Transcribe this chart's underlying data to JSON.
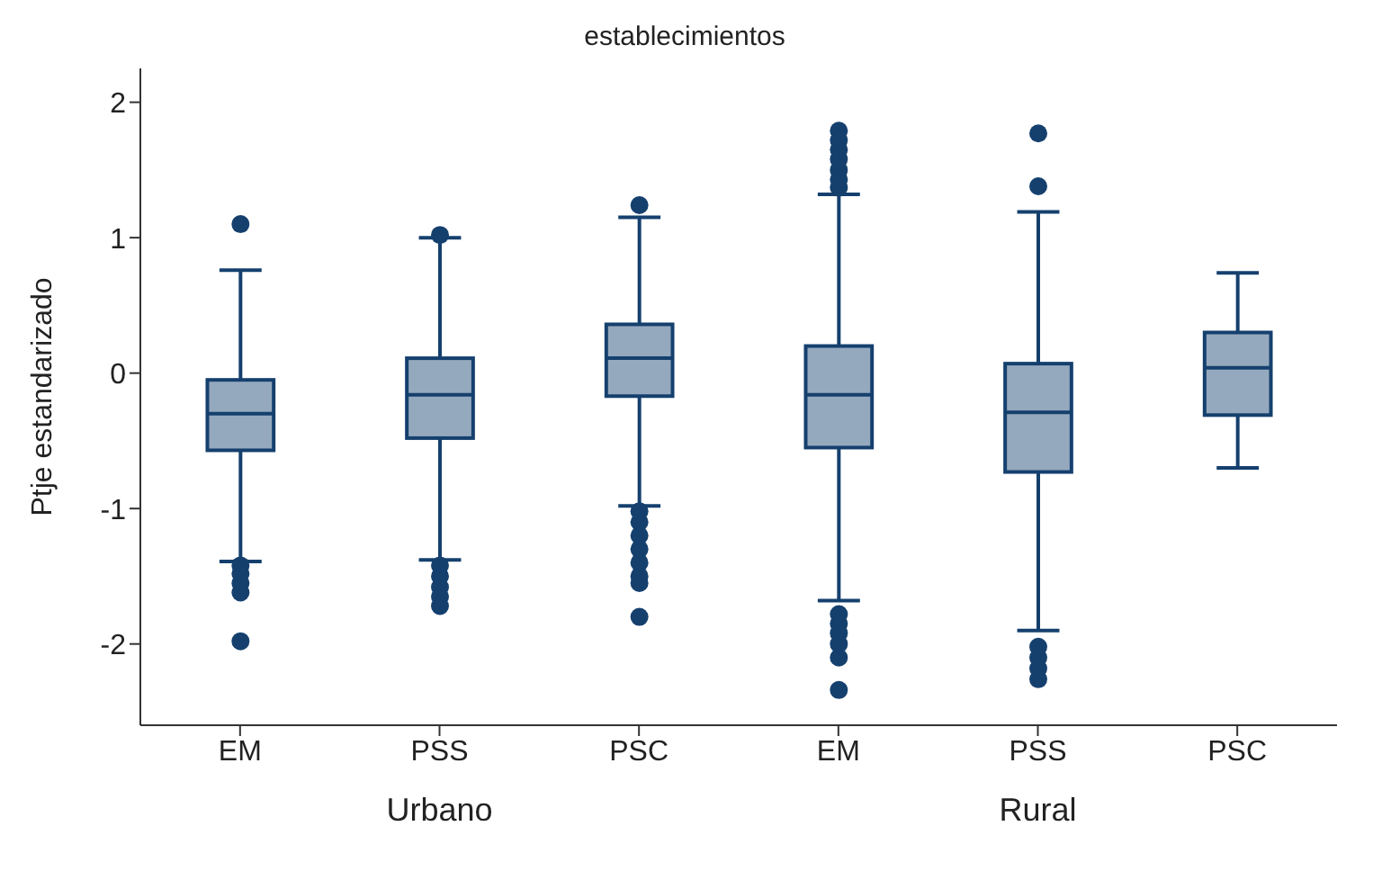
{
  "chart_data": {
    "type": "box",
    "title": "establecimientos",
    "ylabel": "Ptje estandarizado",
    "categories": [
      "EM",
      "PSS",
      "PSC",
      "EM",
      "PSS",
      "PSC"
    ],
    "color": "#15406e",
    "boxes": [
      {
        "low": -1.39,
        "q1": -0.57,
        "median": -0.3,
        "q3": -0.05,
        "high": 0.76,
        "outliers": [
          1.1,
          -1.42,
          -1.48,
          -1.55,
          -1.62,
          -1.98
        ]
      },
      {
        "low": -1.38,
        "q1": -0.48,
        "median": -0.16,
        "q3": 0.11,
        "high": 1.0,
        "outliers": [
          1.02,
          -1.42,
          -1.5,
          -1.58,
          -1.65,
          -1.72
        ]
      },
      {
        "low": -0.98,
        "q1": -0.17,
        "median": 0.11,
        "q3": 0.36,
        "high": 1.15,
        "outliers": [
          1.24,
          -1.02,
          -1.1,
          -1.2,
          -1.3,
          -1.4,
          -1.5,
          -1.55,
          -1.8
        ]
      },
      {
        "low": -1.68,
        "q1": -0.55,
        "median": -0.16,
        "q3": 0.2,
        "high": 1.32,
        "outliers": [
          1.79,
          1.72,
          1.65,
          1.58,
          1.5,
          1.43,
          1.37,
          -1.78,
          -1.85,
          -1.92,
          -2.0,
          -2.1,
          -2.34
        ]
      },
      {
        "low": -1.9,
        "q1": -0.73,
        "median": -0.29,
        "q3": 0.07,
        "high": 1.19,
        "outliers": [
          1.77,
          1.38,
          -2.02,
          -2.1,
          -2.18,
          -2.26
        ]
      },
      {
        "low": -0.7,
        "q1": -0.31,
        "median": 0.04,
        "q3": 0.3,
        "high": 0.74
      }
    ],
    "annotations": [
      "Urbano",
      "Rural"
    ],
    "ylim": [
      -2.6,
      2.25
    ],
    "yticks": [
      -2,
      -1,
      0,
      1,
      2
    ]
  }
}
